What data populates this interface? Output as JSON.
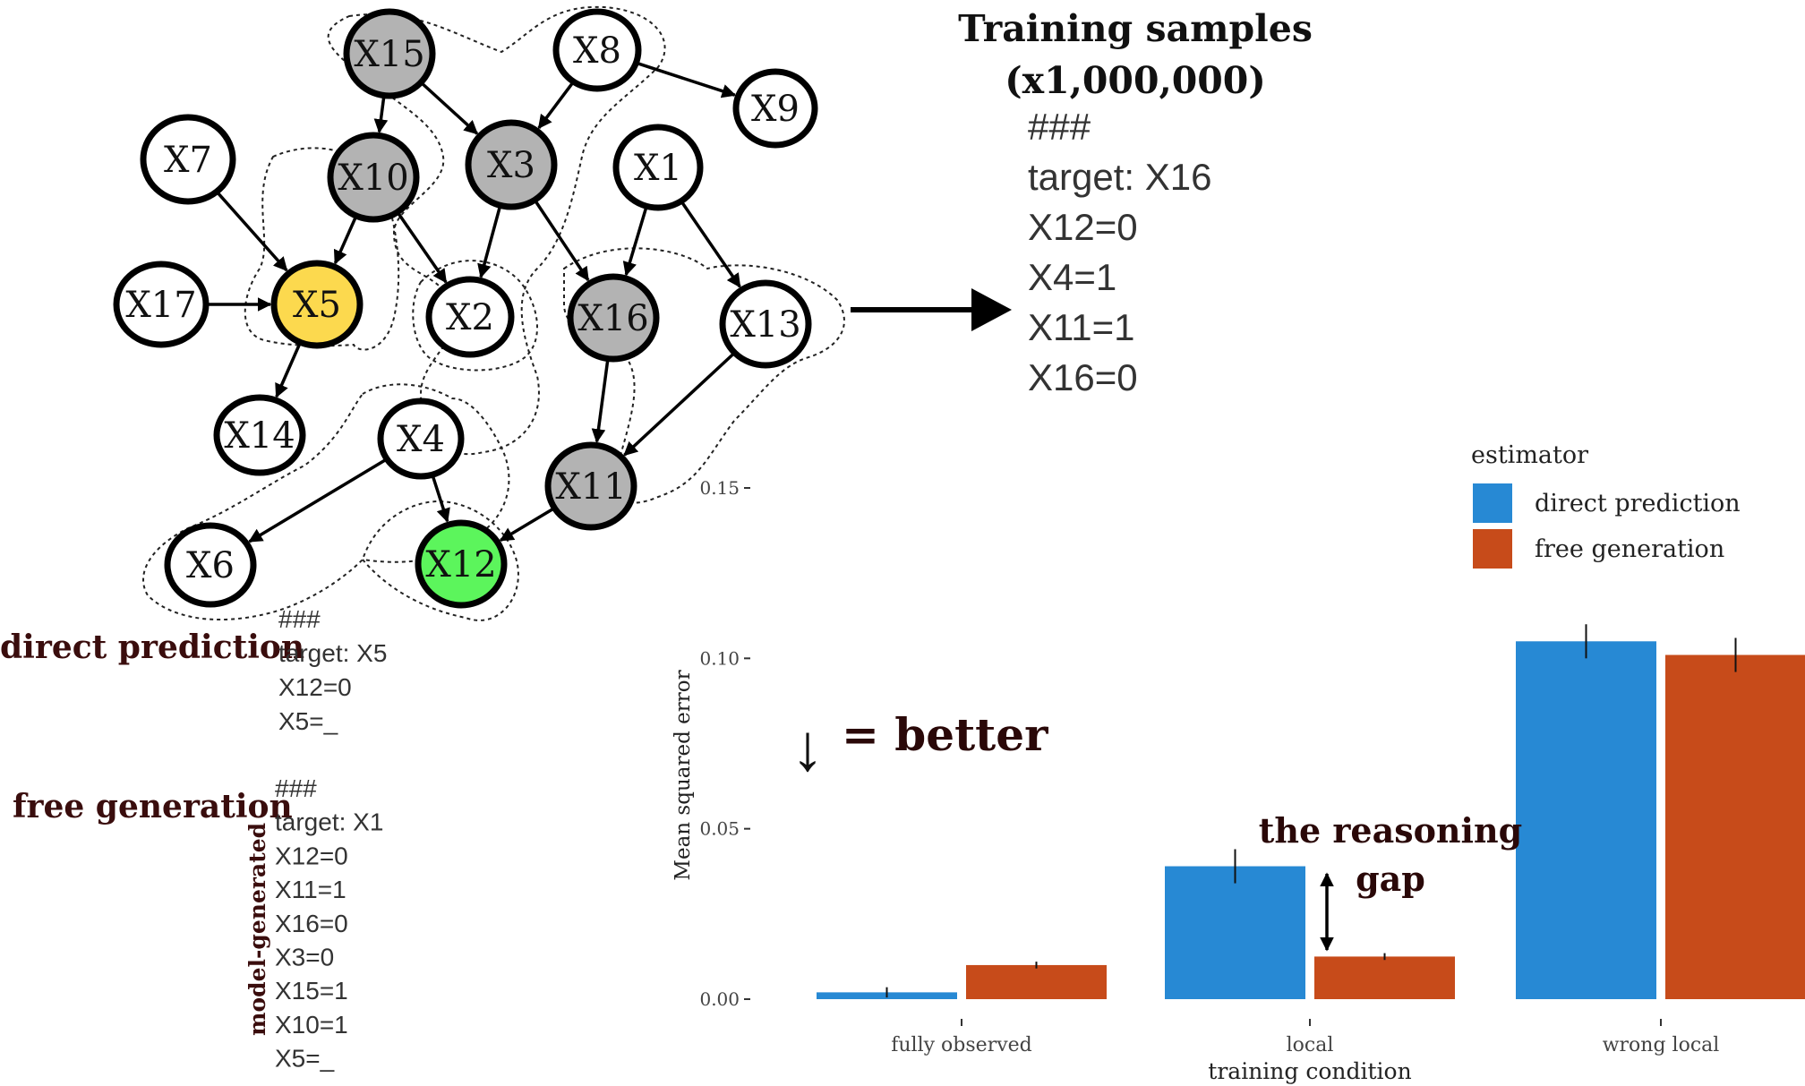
{
  "graph": {
    "nodes": [
      {
        "id": "X15",
        "label": "X15",
        "fill": "#b3b3b3"
      },
      {
        "id": "X8",
        "label": "X8",
        "fill": "#ffffff"
      },
      {
        "id": "X9",
        "label": "X9",
        "fill": "#ffffff"
      },
      {
        "id": "X7",
        "label": "X7",
        "fill": "#ffffff"
      },
      {
        "id": "X10",
        "label": "X10",
        "fill": "#b3b3b3"
      },
      {
        "id": "X3",
        "label": "X3",
        "fill": "#b3b3b3"
      },
      {
        "id": "X1",
        "label": "X1",
        "fill": "#ffffff"
      },
      {
        "id": "X17",
        "label": "X17",
        "fill": "#ffffff"
      },
      {
        "id": "X5",
        "label": "X5",
        "fill": "#fcd94e"
      },
      {
        "id": "X2",
        "label": "X2",
        "fill": "#ffffff"
      },
      {
        "id": "X16",
        "label": "X16",
        "fill": "#b3b3b3"
      },
      {
        "id": "X13",
        "label": "X13",
        "fill": "#ffffff"
      },
      {
        "id": "X14",
        "label": "X14",
        "fill": "#ffffff"
      },
      {
        "id": "X4",
        "label": "X4",
        "fill": "#ffffff"
      },
      {
        "id": "X11",
        "label": "X11",
        "fill": "#b3b3b3"
      },
      {
        "id": "X6",
        "label": "X6",
        "fill": "#ffffff"
      },
      {
        "id": "X12",
        "label": "X12",
        "fill": "#5cf55c"
      }
    ],
    "edges": [
      [
        "X15",
        "X10"
      ],
      [
        "X15",
        "X3"
      ],
      [
        "X8",
        "X3"
      ],
      [
        "X8",
        "X9"
      ],
      [
        "X7",
        "X5"
      ],
      [
        "X10",
        "X5"
      ],
      [
        "X10",
        "X2"
      ],
      [
        "X3",
        "X2"
      ],
      [
        "X3",
        "X16"
      ],
      [
        "X1",
        "X16"
      ],
      [
        "X1",
        "X13"
      ],
      [
        "X17",
        "X5"
      ],
      [
        "X5",
        "X14"
      ],
      [
        "X16",
        "X11"
      ],
      [
        "X13",
        "X11"
      ],
      [
        "X4",
        "X6"
      ],
      [
        "X4",
        "X12"
      ],
      [
        "X11",
        "X12"
      ]
    ]
  },
  "training": {
    "title_line1": "Training samples",
    "title_line2": "(x1,000,000)",
    "lines": [
      "###",
      "target: X16",
      "X12=0",
      "X4=1",
      "X11=1",
      "X16=0"
    ]
  },
  "direct_prediction": {
    "label": "direct prediction",
    "lines": [
      "###",
      "target: X5",
      "X12=0",
      "X5=_"
    ]
  },
  "free_generation": {
    "label": "free generation",
    "side_label": "model-generated",
    "lines": [
      "###",
      "target: X1",
      "X12=0",
      "X11=1",
      "X16=0",
      "X3=0",
      "X15=1",
      "X10=1",
      "X5=_"
    ]
  },
  "annotations": {
    "better_arrow": "↓",
    "better_text": "= better",
    "gap_line1": "the reasoning",
    "gap_line2": "gap"
  },
  "chart_data": {
    "type": "bar",
    "categories": [
      "fully observed",
      "local",
      "wrong local"
    ],
    "series": [
      {
        "name": "direct prediction",
        "color": "#2789d4",
        "values": [
          0.002,
          0.039,
          0.105
        ],
        "err": [
          0.0015,
          0.005,
          0.005
        ]
      },
      {
        "name": "free generation",
        "color": "#c74b1a",
        "values": [
          0.01,
          0.0125,
          0.101
        ],
        "err": [
          0.001,
          0.001,
          0.005
        ]
      }
    ],
    "xlabel": "training condition",
    "ylabel": "Mean squared error",
    "yticks": [
      0.0,
      0.05,
      0.1,
      0.15
    ],
    "ytick_labels": [
      "0.00",
      "0.05",
      "0.10",
      "0.15"
    ],
    "ylim": [
      0,
      0.15
    ],
    "legend_title": "estimator",
    "legend_position": "top-right",
    "grid": false
  }
}
